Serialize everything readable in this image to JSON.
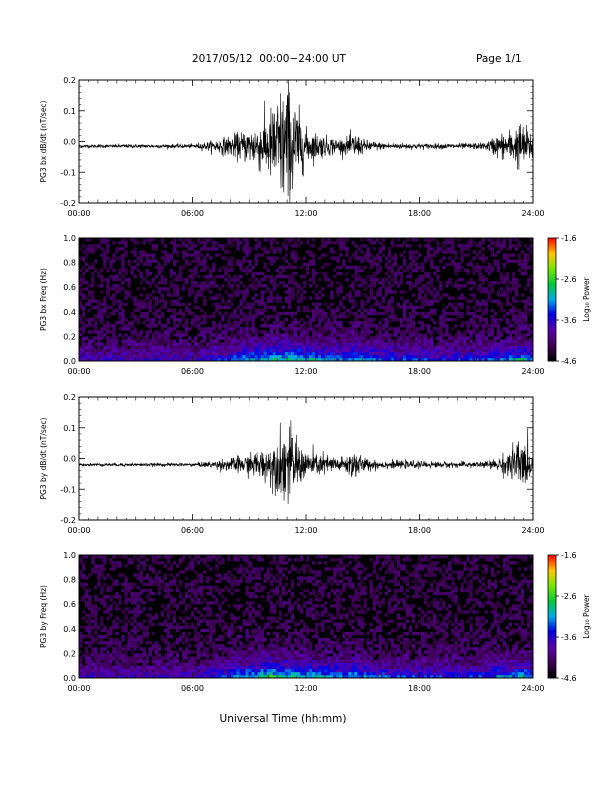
{
  "header": {
    "title": "2017/05/12  00:00−24:00 UT",
    "page": "Page 1/1"
  },
  "x_axis": {
    "title": "Universal Time (hh:mm)",
    "range_hours": [
      0,
      24
    ],
    "ticks": [
      "00:00",
      "06:00",
      "12:00",
      "18:00",
      "24:00"
    ]
  },
  "colorbar": {
    "label": "Log₁₀ Power",
    "range": [
      -4.6,
      -1.6
    ],
    "ticks": [
      "-1.6",
      "-2.6",
      "-3.6",
      "-4.6"
    ]
  },
  "chart_data": [
    {
      "id": "bx-waveform",
      "type": "line",
      "ylabel": "PG3 bx dB/dt (nT/sec)",
      "ylim": [
        -0.2,
        0.2
      ],
      "yticks": [
        "0.2",
        "0.1",
        "0.0",
        "-0.1",
        "-0.2"
      ],
      "baseline": -0.015,
      "amplitude_envelope": {
        "x_hours": [
          0,
          6,
          7,
          8,
          9,
          10,
          10.5,
          11,
          11.5,
          12,
          13,
          14,
          14.6,
          15,
          16,
          18,
          20,
          21.5,
          22,
          22.5,
          23,
          23.3,
          24
        ],
        "amplitude": [
          0.005,
          0.006,
          0.015,
          0.03,
          0.05,
          0.09,
          0.15,
          0.2,
          0.12,
          0.05,
          0.03,
          0.02,
          0.04,
          0.02,
          0.01,
          0.008,
          0.008,
          0.01,
          0.03,
          0.04,
          0.05,
          0.07,
          0.04
        ]
      }
    },
    {
      "id": "bx-spectrogram",
      "type": "heatmap",
      "ylabel": "PG3 bx Freq (Hz)",
      "ylim": [
        0.0,
        1.0
      ],
      "yticks": [
        "1.0",
        "0.8",
        "0.6",
        "0.4",
        "0.2",
        "0.0"
      ],
      "zlim": [
        -4.6,
        -1.6
      ],
      "activity": {
        "x_hours": [
          0,
          6,
          7,
          8,
          8.5,
          9,
          10,
          11,
          12,
          13,
          14,
          14.6,
          16,
          18,
          20,
          21.5,
          22,
          23,
          23.3,
          24
        ],
        "low_freq_power": [
          -3.9,
          -3.9,
          -3.7,
          -3.5,
          -3.3,
          -3.2,
          -3.0,
          -2.9,
          -3.1,
          -3.2,
          -3.3,
          -3.1,
          -3.5,
          -3.6,
          -3.7,
          -3.6,
          -3.4,
          -3.2,
          -3.0,
          -3.4
        ]
      }
    },
    {
      "id": "by-waveform",
      "type": "line",
      "ylabel": "PG3 by dB/dt (nT/sec)",
      "ylim": [
        -0.2,
        0.2
      ],
      "yticks": [
        "0.2",
        "0.1",
        "0.0",
        "-0.1",
        "-0.2"
      ],
      "baseline": -0.02,
      "amplitude_envelope": {
        "x_hours": [
          0,
          6,
          7,
          8,
          9,
          10,
          10.5,
          11,
          11.5,
          12,
          13,
          14,
          14.6,
          15,
          16,
          18,
          20,
          21.5,
          22,
          22.5,
          23,
          23.3,
          24
        ],
        "amplitude": [
          0.004,
          0.005,
          0.01,
          0.02,
          0.03,
          0.05,
          0.08,
          0.12,
          0.07,
          0.04,
          0.03,
          0.02,
          0.05,
          0.02,
          0.012,
          0.01,
          0.008,
          0.01,
          0.015,
          0.03,
          0.06,
          0.08,
          0.03
        ]
      }
    },
    {
      "id": "by-spectrogram",
      "type": "heatmap",
      "ylabel": "PG3 by Freq (Hz)",
      "ylim": [
        0.0,
        1.0
      ],
      "yticks": [
        "1.0",
        "0.8",
        "0.6",
        "0.4",
        "0.2",
        "0.0"
      ],
      "zlim": [
        -4.6,
        -1.6
      ],
      "activity": {
        "x_hours": [
          0,
          6,
          7,
          8,
          8.5,
          9,
          10,
          11,
          12,
          13,
          14,
          14.6,
          16,
          18,
          20,
          21.5,
          22,
          23,
          23.3,
          24
        ],
        "low_freq_power": [
          -3.9,
          -3.9,
          -3.7,
          -3.5,
          -3.2,
          -3.1,
          -2.8,
          -2.9,
          -3.1,
          -3.2,
          -3.3,
          -3.1,
          -3.5,
          -3.6,
          -3.7,
          -3.6,
          -3.4,
          -3.2,
          -3.0,
          -3.4
        ]
      }
    }
  ]
}
